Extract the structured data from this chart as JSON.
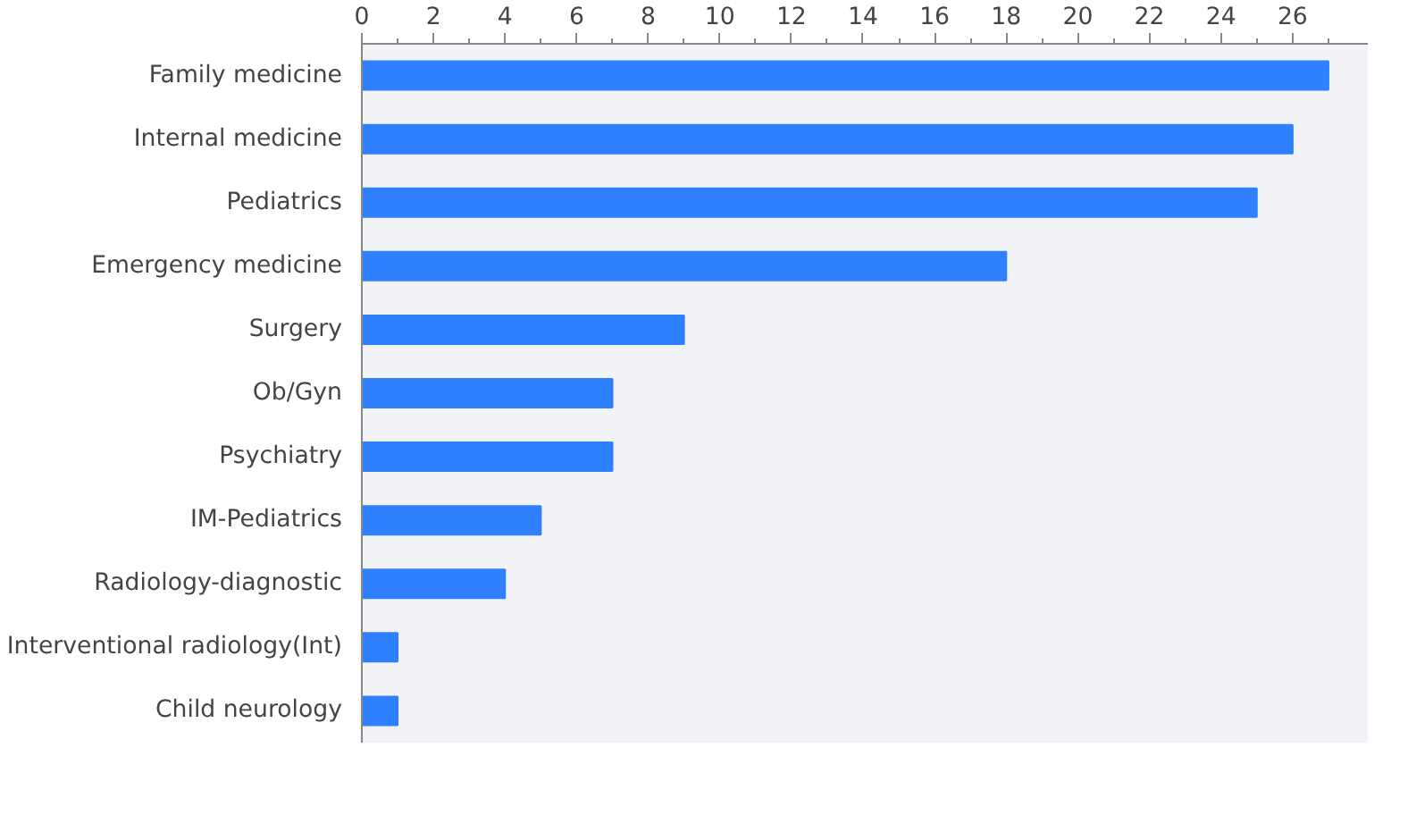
{
  "chart_data": {
    "type": "bar",
    "orientation": "horizontal",
    "categories": [
      "Family medicine",
      "Internal medicine",
      "Pediatrics",
      "Emergency medicine",
      "Surgery",
      "Ob/Gyn",
      "Psychiatry",
      "IM-Pediatrics",
      "Radiology-diagnostic",
      "Interventional radiology(Int)",
      "Child neurology"
    ],
    "values": [
      27,
      26,
      25,
      18,
      9,
      7,
      7,
      5,
      4,
      1,
      1
    ],
    "color": "#2f80ff",
    "xlim": [
      0,
      28.1
    ],
    "xticks": [
      0,
      {
        "value": 1,
        "label": null
      },
      2,
      {
        "value": 3,
        "label": null
      },
      4,
      {
        "value": 5,
        "label": null
      },
      6,
      {
        "value": 7,
        "label": null
      },
      8,
      {
        "value": 9,
        "label": null
      },
      10,
      {
        "value": 11,
        "label": null
      },
      12,
      {
        "value": 13,
        "label": null
      },
      14,
      {
        "value": 15,
        "label": null
      },
      16,
      {
        "value": 17,
        "label": null
      },
      18,
      {
        "value": 19,
        "label": null
      },
      20,
      {
        "value": 21,
        "label": null
      },
      22,
      {
        "value": 23,
        "label": null
      },
      24,
      {
        "value": 25,
        "label": null
      },
      26,
      {
        "value": 27,
        "label": null
      }
    ],
    "grid": false
  }
}
